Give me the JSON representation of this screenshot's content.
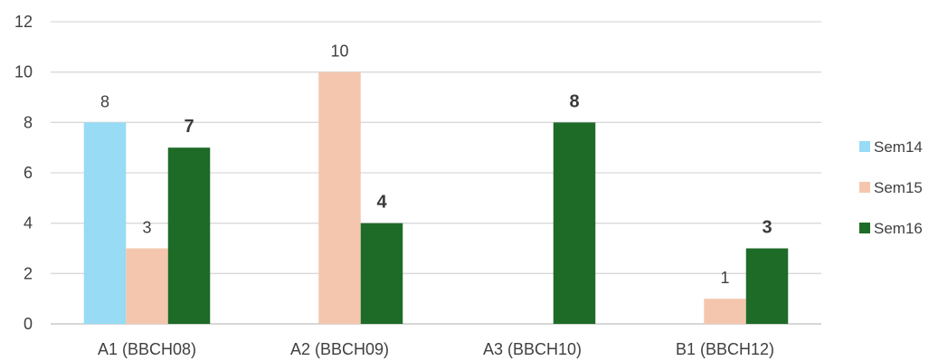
{
  "chart_data": {
    "type": "bar",
    "title": "",
    "xlabel": "",
    "ylabel": "",
    "ylim": [
      0,
      12
    ],
    "yticks": [
      0,
      2,
      4,
      6,
      8,
      10,
      12
    ],
    "grid": true,
    "legend_position": "right",
    "categories": [
      "A1 (BBCH08)",
      "A2 (BBCH09)",
      "A3 (BBCH10)",
      "B1 (BBCH12)"
    ],
    "series": [
      {
        "name": "Sem14",
        "color": "#97dbf5",
        "values": [
          8,
          null,
          null,
          null
        ],
        "labels": [
          "8",
          null,
          null,
          null
        ],
        "bold_labels": false
      },
      {
        "name": "Sem15",
        "color": "#f5c6ae",
        "values": [
          3,
          10,
          null,
          1
        ],
        "labels": [
          "3",
          "10",
          null,
          "1"
        ],
        "bold_labels": false
      },
      {
        "name": "Sem16",
        "color": "#1e6b28",
        "values": [
          7,
          4,
          8,
          3
        ],
        "labels": [
          "7",
          "4",
          "8",
          "3"
        ],
        "bold_labels": true
      }
    ]
  }
}
